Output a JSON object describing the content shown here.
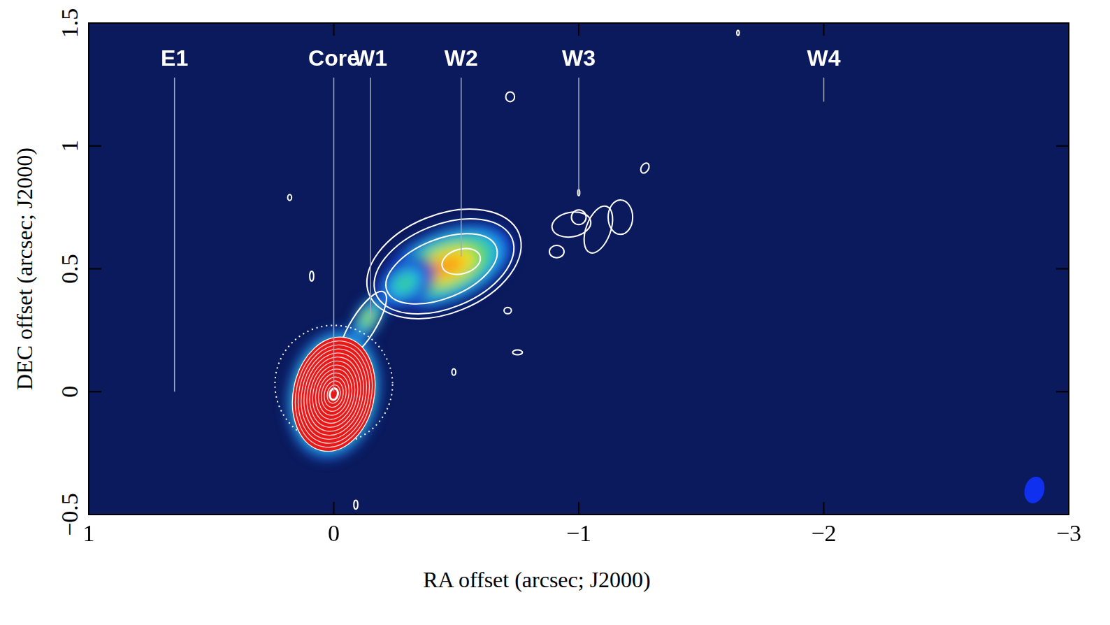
{
  "chart_data": {
    "type": "image",
    "x_label": "RA offset (arcsec; J2000)",
    "y_label": "DEC offset (arcsec; J2000)",
    "xlim": [
      1,
      -3
    ],
    "ylim": [
      -0.5,
      1.5
    ],
    "xticks": [
      1,
      0,
      {
        "value": -1,
        "label": "−1"
      },
      {
        "value": -2,
        "label": "−2"
      },
      {
        "value": -3,
        "label": "−3"
      }
    ],
    "yticks": [
      {
        "value": -0.5,
        "label": "−0.5"
      },
      0,
      0.5,
      1,
      1.5
    ],
    "annotations": [
      {
        "text": "E1",
        "x": 0.65,
        "y": 0.0
      },
      {
        "text": "Core",
        "x": 0.0,
        "y": 0.0
      },
      {
        "text": "W1",
        "x": -0.15,
        "y": 0.3
      },
      {
        "text": "W2",
        "x": -0.52,
        "y": 0.55
      },
      {
        "text": "W3",
        "x": -1.0,
        "y": 0.8
      },
      {
        "text": "W4",
        "x": -2.0,
        "y": 1.18
      }
    ],
    "components": [
      {
        "x": -0.46,
        "y": 0.51,
        "a": 0.25,
        "b": 0.13,
        "pa": 22,
        "peak": 0.78
      },
      {
        "x": -0.29,
        "y": 0.44,
        "a": 0.12,
        "b": 0.08,
        "pa": 35,
        "peak": 0.45
      },
      {
        "x": -0.14,
        "y": 0.3,
        "a": 0.09,
        "b": 0.045,
        "pa": 60,
        "peak": 0.6
      },
      {
        "x": -0.07,
        "y": 0.19,
        "a": 0.06,
        "b": 0.04,
        "pa": 60,
        "peak": 0.85
      },
      {
        "x": 0.0,
        "y": -0.01,
        "a": 0.16,
        "b": 0.23,
        "pa": -12,
        "peak": 1.0
      }
    ],
    "core_contours": {
      "x": 0.0,
      "y": -0.01,
      "a": 0.165,
      "b": 0.235,
      "pa": -12,
      "levels": [
        1,
        0.93,
        0.86,
        0.79,
        0.72,
        0.65,
        0.58,
        0.51,
        0.44,
        0.37,
        0.3,
        0.23,
        0.16,
        0.1
      ]
    },
    "contours": [
      {
        "line_style": "solid",
        "ellipses": [
          {
            "x": -0.45,
            "y": 0.52,
            "a": 0.33,
            "b": 0.2,
            "pa": 22
          },
          {
            "x": -0.45,
            "y": 0.51,
            "a": 0.3,
            "b": 0.17,
            "pa": 22
          },
          {
            "x": -0.44,
            "y": 0.5,
            "a": 0.24,
            "b": 0.12,
            "pa": 22
          },
          {
            "x": -0.52,
            "y": 0.53,
            "a": 0.08,
            "b": 0.05,
            "pa": 15
          },
          {
            "x": -0.12,
            "y": 0.27,
            "a": 0.16,
            "b": 0.05,
            "pa": 58
          },
          {
            "x": -0.97,
            "y": 0.68,
            "a": 0.08,
            "b": 0.05,
            "pa": 10
          },
          {
            "x": -1.0,
            "y": 0.71,
            "a": 0.03,
            "b": 0.03,
            "pa": 0
          },
          {
            "x": -1.08,
            "y": 0.66,
            "a": 0.05,
            "b": 0.1,
            "pa": -20
          },
          {
            "x": -1.17,
            "y": 0.71,
            "a": 0.05,
            "b": 0.07,
            "pa": 0
          },
          {
            "x": -0.91,
            "y": 0.57,
            "a": 0.03,
            "b": 0.025,
            "pa": 0
          },
          {
            "x": -0.72,
            "y": 1.2,
            "a": 0.018,
            "b": 0.02,
            "pa": 0
          },
          {
            "x": -1.27,
            "y": 0.91,
            "a": 0.015,
            "b": 0.022,
            "pa": -30
          },
          {
            "x": 0.18,
            "y": 0.79,
            "a": 0.008,
            "b": 0.012,
            "pa": 0
          },
          {
            "x": 0.09,
            "y": 0.47,
            "a": 0.008,
            "b": 0.02,
            "pa": 0
          },
          {
            "x": -0.71,
            "y": 0.33,
            "a": 0.015,
            "b": 0.013,
            "pa": 0
          },
          {
            "x": -0.75,
            "y": 0.16,
            "a": 0.02,
            "b": 0.01,
            "pa": 0
          },
          {
            "x": -0.49,
            "y": 0.08,
            "a": 0.008,
            "b": 0.013,
            "pa": 0
          },
          {
            "x": -0.09,
            "y": -0.46,
            "a": 0.008,
            "b": 0.018,
            "pa": 0
          },
          {
            "x": -1.0,
            "y": 0.81,
            "a": 0.004,
            "b": 0.012,
            "pa": 0
          },
          {
            "x": -1.65,
            "y": 1.46,
            "a": 0.005,
            "b": 0.01,
            "pa": 0
          }
        ]
      },
      {
        "line_style": "dotted",
        "ellipses": [
          {
            "x": 0.0,
            "y": 0.03,
            "a": 0.24,
            "b": 0.24,
            "pa": 0
          }
        ]
      }
    ],
    "beam": {
      "x": -2.86,
      "y": -0.4,
      "a": 0.04,
      "b": 0.055,
      "pa": -15
    }
  }
}
